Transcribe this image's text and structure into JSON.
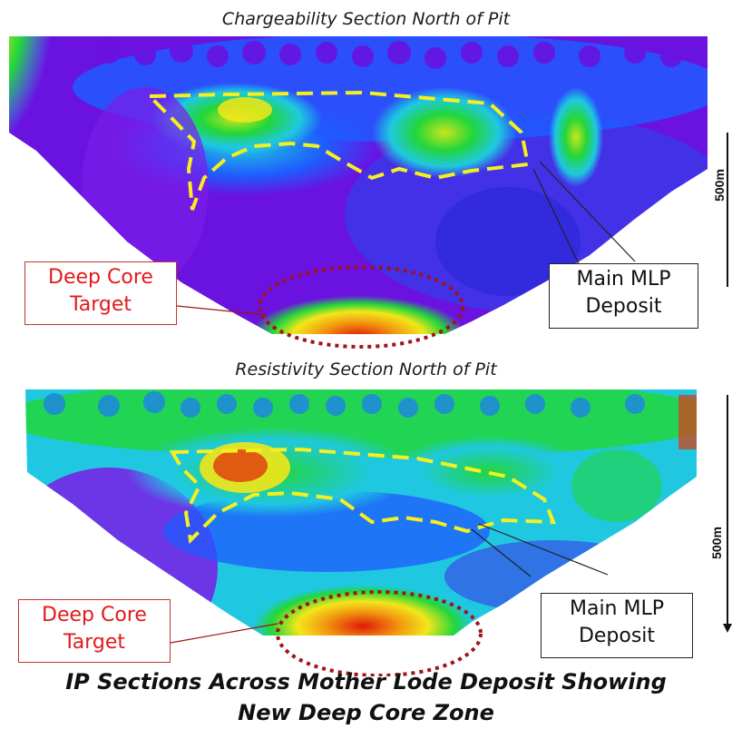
{
  "sections": [
    {
      "title": "Chargeability Section North of Pit",
      "target_label": [
        "Deep Core",
        "Target"
      ],
      "deposit_label": [
        "Main MLP",
        "Deposit"
      ],
      "scale_label": "500m"
    },
    {
      "title": "Resistivity Section North of Pit",
      "target_label": [
        "Deep Core",
        "Target"
      ],
      "deposit_label": [
        "Main MLP",
        "Deposit"
      ],
      "scale_label": "500m"
    }
  ],
  "caption": [
    "IP Sections Across Mother Lode Deposit Showing",
    "New Deep Core Zone"
  ],
  "colors": {
    "low": "#5a00d6",
    "mid_low": "#1f5bff",
    "mid": "#1fc8e0",
    "green": "#22d63a",
    "yellow": "#f2e61a",
    "high": "#e01a0a",
    "deposit_outline": "#f5f01e",
    "target_outline": "#a01414",
    "target_text": "#e01b1b"
  }
}
